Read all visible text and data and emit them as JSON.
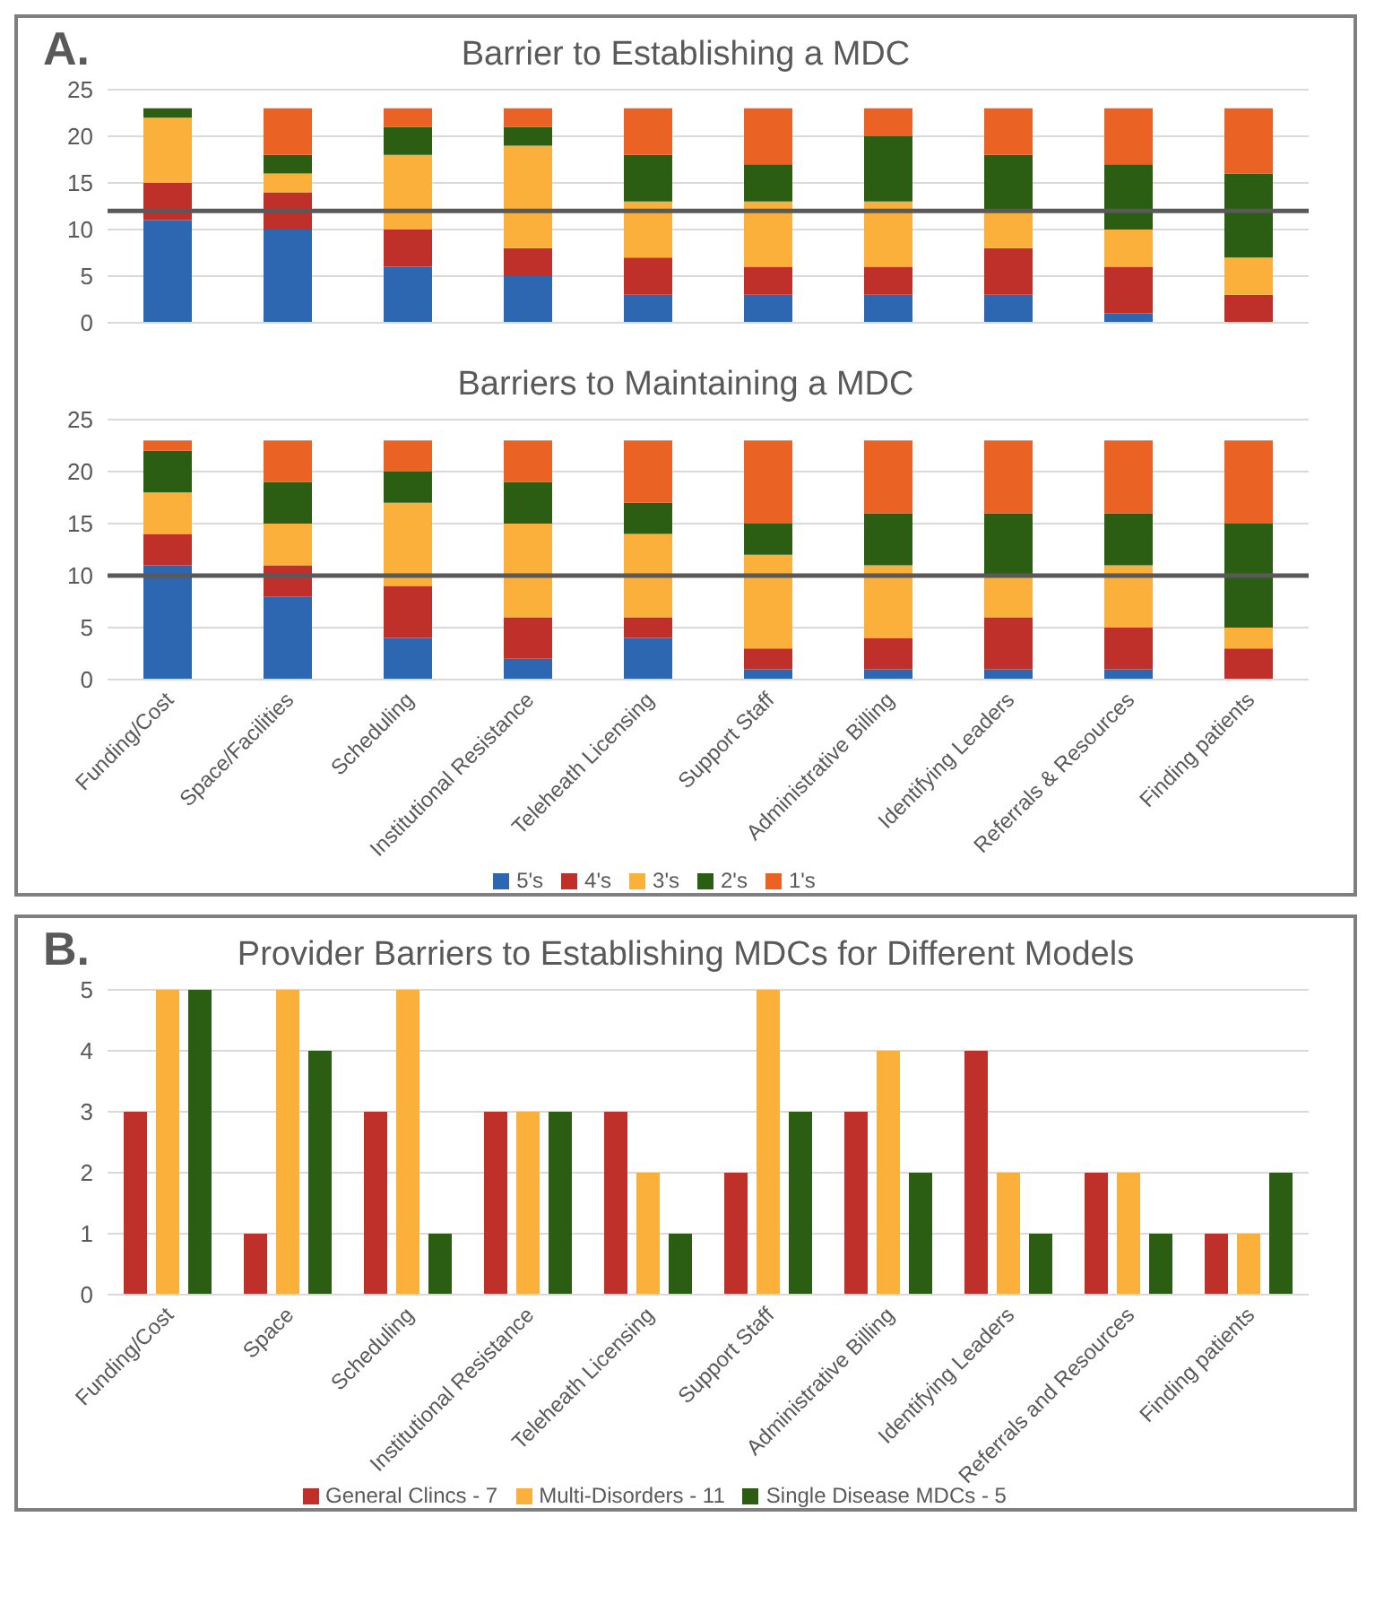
{
  "chart_data": [
    {
      "type": "bar",
      "title": "Barrier to Establishing a MDC",
      "annotations": [
        "A."
      ],
      "stacked": true,
      "grid": "y",
      "legend": false,
      "tick_labels": "y",
      "categories": [
        null,
        null,
        null,
        null,
        null,
        null,
        null,
        null,
        null,
        null
      ],
      "ylim": [
        0,
        25
      ],
      "yticks": [
        0,
        5,
        10,
        15,
        20,
        25
      ],
      "ref_lines": [
        {
          "axis": "y",
          "value": 12,
          "color": "#595959"
        }
      ],
      "series": [
        {
          "color": "#2e67b1",
          "values": [
            11,
            10,
            6,
            5,
            3,
            3,
            3,
            3,
            1,
            0
          ]
        },
        {
          "color": "#c0302a",
          "values": [
            4,
            4,
            4,
            3,
            4,
            3,
            3,
            5,
            5,
            3
          ]
        },
        {
          "color": "#fbb03b",
          "values": [
            7,
            2,
            8,
            11,
            6,
            7,
            7,
            4,
            4,
            4
          ]
        },
        {
          "color": "#2b5e12",
          "values": [
            1,
            2,
            3,
            2,
            5,
            4,
            7,
            6,
            7,
            9
          ]
        },
        {
          "color": "#ea6325",
          "values": [
            0,
            5,
            2,
            2,
            5,
            6,
            3,
            5,
            6,
            7
          ]
        }
      ]
    },
    {
      "type": "bar",
      "title": "Barriers to Maintaining a MDC",
      "stacked": true,
      "grid": "y",
      "legend": "bottom",
      "categories": [
        "Funding/Cost",
        "Space/Facilities",
        "Scheduling",
        "Institutional Resistance",
        "Teleheath Licensing",
        "Support Staff",
        "Administrative Billing",
        "Identifying Leaders",
        "Referrals & Resources",
        "Finding patients"
      ],
      "ylim": [
        0,
        25
      ],
      "yticks": [
        0,
        5,
        10,
        15,
        20,
        25
      ],
      "ref_lines": [
        {
          "axis": "y",
          "value": 10,
          "color": "#595959"
        }
      ],
      "series": [
        {
          "name": "5's",
          "color": "#2e67b1",
          "values": [
            11,
            8,
            4,
            2,
            4,
            1,
            1,
            1,
            1,
            0
          ]
        },
        {
          "name": "4's",
          "color": "#c0302a",
          "values": [
            3,
            3,
            5,
            4,
            2,
            2,
            3,
            5,
            4,
            3
          ]
        },
        {
          "name": "3's",
          "color": "#fbb03b",
          "values": [
            4,
            4,
            8,
            9,
            8,
            9,
            7,
            4,
            6,
            2
          ]
        },
        {
          "name": "2's",
          "color": "#2b5e12",
          "values": [
            4,
            4,
            3,
            4,
            3,
            3,
            5,
            6,
            5,
            10
          ]
        },
        {
          "name": "1's",
          "color": "#ea6325",
          "values": [
            1,
            4,
            3,
            4,
            6,
            8,
            7,
            7,
            7,
            8
          ]
        }
      ]
    },
    {
      "type": "bar",
      "title": "Provider Barriers to Establishing MDCs for Different Models",
      "annotations": [
        "B."
      ],
      "grid": "y",
      "legend": "bottom",
      "categories": [
        "Funding/Cost",
        "Space",
        "Scheduling",
        "Institutional Resistance",
        "Teleheath Licensing",
        "Support Staff",
        "Administrative Billing",
        "Identifying Leaders",
        "Referrals and Resources",
        "Finding patients"
      ],
      "ylim": [
        0,
        5
      ],
      "yticks": [
        0,
        1,
        2,
        3,
        4,
        5
      ],
      "series": [
        {
          "name": "General Clincs - 7",
          "color": "#c0302a",
          "values": [
            3,
            1,
            3,
            3,
            3,
            2,
            3,
            4,
            2,
            1
          ]
        },
        {
          "name": "Multi-Disorders - 11",
          "color": "#fbb03b",
          "values": [
            5,
            5,
            5,
            3,
            2,
            5,
            4,
            2,
            2,
            1
          ]
        },
        {
          "name": "Single Disease MDCs - 5",
          "color": "#2b5e12",
          "values": [
            5,
            4,
            1,
            3,
            1,
            3,
            2,
            1,
            1,
            2
          ]
        }
      ]
    }
  ]
}
